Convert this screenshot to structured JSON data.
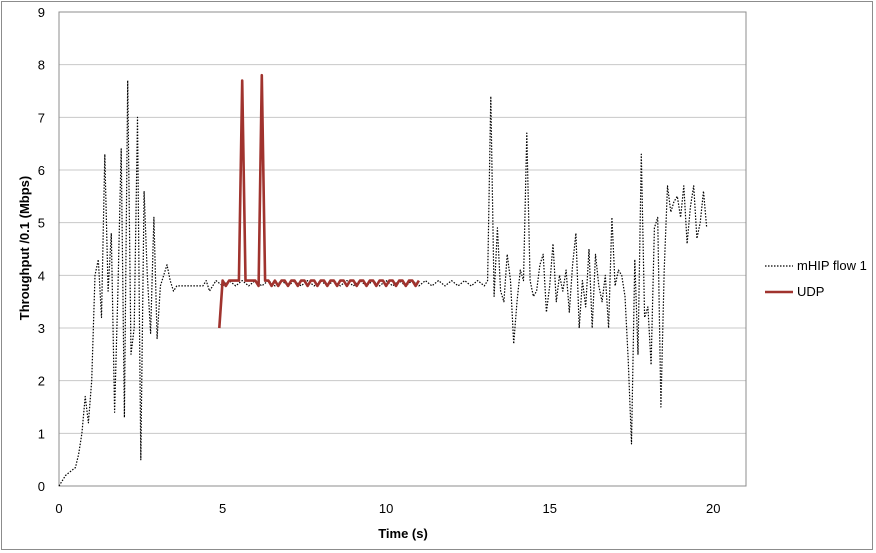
{
  "chart_data": {
    "type": "line",
    "xlabel": "Time (s)",
    "ylabel": "Throughput /0.1 (Mbps)",
    "xlim": [
      0,
      21
    ],
    "ylim": [
      0,
      9
    ],
    "x_ticks": [
      "0",
      "5",
      "10",
      "15",
      "20"
    ],
    "y_ticks": [
      "0",
      "1",
      "2",
      "3",
      "4",
      "5",
      "6",
      "7",
      "8",
      "9"
    ],
    "grid": "horizontal",
    "legend_position": "right",
    "series": [
      {
        "name": "mHIP flow 1",
        "color": "#000000",
        "style": "dotted",
        "points": [
          [
            0.0,
            0.0
          ],
          [
            0.1,
            0.1
          ],
          [
            0.2,
            0.2
          ],
          [
            0.3,
            0.25
          ],
          [
            0.4,
            0.3
          ],
          [
            0.5,
            0.35
          ],
          [
            0.6,
            0.6
          ],
          [
            0.7,
            1.0
          ],
          [
            0.8,
            1.7
          ],
          [
            0.9,
            1.2
          ],
          [
            1.0,
            2.0
          ],
          [
            1.1,
            4.0
          ],
          [
            1.2,
            4.3
          ],
          [
            1.3,
            3.2
          ],
          [
            1.4,
            6.3
          ],
          [
            1.5,
            3.7
          ],
          [
            1.6,
            4.8
          ],
          [
            1.7,
            1.4
          ],
          [
            1.8,
            3.7
          ],
          [
            1.9,
            6.4
          ],
          [
            2.0,
            1.3
          ],
          [
            2.1,
            7.7
          ],
          [
            2.2,
            2.5
          ],
          [
            2.3,
            3.0
          ],
          [
            2.4,
            7.0
          ],
          [
            2.5,
            0.5
          ],
          [
            2.6,
            5.6
          ],
          [
            2.7,
            4.0
          ],
          [
            2.8,
            2.9
          ],
          [
            2.9,
            5.1
          ],
          [
            3.0,
            2.8
          ],
          [
            3.1,
            3.8
          ],
          [
            3.2,
            4.0
          ],
          [
            3.3,
            4.2
          ],
          [
            3.4,
            3.9
          ],
          [
            3.5,
            3.7
          ],
          [
            3.6,
            3.8
          ],
          [
            3.8,
            3.8
          ],
          [
            4.0,
            3.8
          ],
          [
            4.2,
            3.8
          ],
          [
            4.4,
            3.8
          ],
          [
            4.5,
            3.9
          ],
          [
            4.6,
            3.7
          ],
          [
            4.8,
            3.9
          ],
          [
            5.0,
            3.8
          ],
          [
            5.2,
            3.9
          ],
          [
            5.4,
            3.8
          ],
          [
            5.6,
            3.9
          ],
          [
            5.8,
            3.8
          ],
          [
            6.0,
            3.9
          ],
          [
            6.2,
            3.8
          ],
          [
            6.4,
            3.9
          ],
          [
            6.6,
            3.8
          ],
          [
            6.8,
            3.9
          ],
          [
            7.0,
            3.8
          ],
          [
            7.2,
            3.9
          ],
          [
            7.4,
            3.8
          ],
          [
            7.6,
            3.9
          ],
          [
            7.8,
            3.8
          ],
          [
            8.0,
            3.9
          ],
          [
            8.2,
            3.8
          ],
          [
            8.4,
            3.9
          ],
          [
            8.6,
            3.8
          ],
          [
            8.8,
            3.9
          ],
          [
            9.0,
            3.8
          ],
          [
            9.2,
            3.9
          ],
          [
            9.4,
            3.8
          ],
          [
            9.6,
            3.9
          ],
          [
            9.8,
            3.8
          ],
          [
            10.0,
            3.9
          ],
          [
            10.2,
            3.8
          ],
          [
            10.4,
            3.9
          ],
          [
            10.6,
            3.8
          ],
          [
            10.8,
            3.9
          ],
          [
            11.0,
            3.8
          ],
          [
            11.2,
            3.9
          ],
          [
            11.4,
            3.8
          ],
          [
            11.6,
            3.9
          ],
          [
            11.8,
            3.8
          ],
          [
            12.0,
            3.9
          ],
          [
            12.2,
            3.8
          ],
          [
            12.4,
            3.9
          ],
          [
            12.6,
            3.8
          ],
          [
            12.8,
            3.9
          ],
          [
            13.0,
            3.8
          ],
          [
            13.1,
            3.9
          ],
          [
            13.2,
            7.4
          ],
          [
            13.3,
            3.6
          ],
          [
            13.4,
            4.9
          ],
          [
            13.5,
            3.7
          ],
          [
            13.6,
            3.5
          ],
          [
            13.7,
            4.4
          ],
          [
            13.8,
            3.9
          ],
          [
            13.9,
            2.7
          ],
          [
            14.0,
            3.5
          ],
          [
            14.1,
            4.1
          ],
          [
            14.2,
            3.9
          ],
          [
            14.3,
            6.7
          ],
          [
            14.4,
            3.9
          ],
          [
            14.5,
            3.6
          ],
          [
            14.6,
            3.7
          ],
          [
            14.7,
            4.2
          ],
          [
            14.8,
            4.4
          ],
          [
            14.9,
            3.3
          ],
          [
            15.0,
            3.8
          ],
          [
            15.1,
            4.6
          ],
          [
            15.2,
            3.5
          ],
          [
            15.3,
            4.0
          ],
          [
            15.4,
            3.7
          ],
          [
            15.5,
            4.1
          ],
          [
            15.6,
            3.3
          ],
          [
            15.7,
            4.2
          ],
          [
            15.8,
            4.8
          ],
          [
            15.9,
            3.0
          ],
          [
            16.0,
            3.9
          ],
          [
            16.1,
            3.4
          ],
          [
            16.2,
            4.5
          ],
          [
            16.3,
            3.0
          ],
          [
            16.4,
            4.4
          ],
          [
            16.5,
            3.8
          ],
          [
            16.6,
            3.5
          ],
          [
            16.7,
            4.0
          ],
          [
            16.8,
            3.0
          ],
          [
            16.9,
            5.1
          ],
          [
            17.0,
            3.8
          ],
          [
            17.1,
            4.1
          ],
          [
            17.2,
            4.0
          ],
          [
            17.3,
            3.6
          ],
          [
            17.4,
            2.4
          ],
          [
            17.5,
            0.8
          ],
          [
            17.6,
            4.3
          ],
          [
            17.7,
            2.5
          ],
          [
            17.8,
            6.3
          ],
          [
            17.9,
            3.2
          ],
          [
            18.0,
            3.4
          ],
          [
            18.1,
            2.3
          ],
          [
            18.2,
            4.9
          ],
          [
            18.3,
            5.1
          ],
          [
            18.4,
            1.5
          ],
          [
            18.5,
            4.1
          ],
          [
            18.6,
            5.7
          ],
          [
            18.7,
            5.2
          ],
          [
            18.8,
            5.4
          ],
          [
            18.9,
            5.5
          ],
          [
            19.0,
            5.1
          ],
          [
            19.1,
            5.7
          ],
          [
            19.2,
            4.6
          ],
          [
            19.3,
            5.3
          ],
          [
            19.4,
            5.7
          ],
          [
            19.5,
            4.7
          ],
          [
            19.6,
            5.0
          ],
          [
            19.7,
            5.6
          ],
          [
            19.8,
            4.9
          ]
        ]
      },
      {
        "name": "UDP",
        "color": "#a0332e",
        "style": "solid",
        "points": [
          [
            4.9,
            3.0
          ],
          [
            5.0,
            3.9
          ],
          [
            5.1,
            3.8
          ],
          [
            5.2,
            3.9
          ],
          [
            5.3,
            3.9
          ],
          [
            5.4,
            3.9
          ],
          [
            5.5,
            3.9
          ],
          [
            5.6,
            7.7
          ],
          [
            5.7,
            3.9
          ],
          [
            5.8,
            3.9
          ],
          [
            5.9,
            3.9
          ],
          [
            6.0,
            3.9
          ],
          [
            6.1,
            3.8
          ],
          [
            6.2,
            7.8
          ],
          [
            6.3,
            3.9
          ],
          [
            6.4,
            3.9
          ],
          [
            6.5,
            3.8
          ],
          [
            6.6,
            3.9
          ],
          [
            6.7,
            3.8
          ],
          [
            6.8,
            3.9
          ],
          [
            6.9,
            3.9
          ],
          [
            7.0,
            3.8
          ],
          [
            7.1,
            3.9
          ],
          [
            7.2,
            3.9
          ],
          [
            7.3,
            3.8
          ],
          [
            7.4,
            3.9
          ],
          [
            7.5,
            3.9
          ],
          [
            7.6,
            3.8
          ],
          [
            7.7,
            3.9
          ],
          [
            7.8,
            3.9
          ],
          [
            7.9,
            3.8
          ],
          [
            8.0,
            3.9
          ],
          [
            8.1,
            3.9
          ],
          [
            8.2,
            3.8
          ],
          [
            8.3,
            3.9
          ],
          [
            8.4,
            3.9
          ],
          [
            8.5,
            3.8
          ],
          [
            8.6,
            3.9
          ],
          [
            8.7,
            3.9
          ],
          [
            8.8,
            3.8
          ],
          [
            8.9,
            3.9
          ],
          [
            9.0,
            3.9
          ],
          [
            9.1,
            3.8
          ],
          [
            9.2,
            3.9
          ],
          [
            9.3,
            3.9
          ],
          [
            9.4,
            3.8
          ],
          [
            9.5,
            3.9
          ],
          [
            9.6,
            3.9
          ],
          [
            9.7,
            3.8
          ],
          [
            9.8,
            3.9
          ],
          [
            9.9,
            3.9
          ],
          [
            10.0,
            3.8
          ],
          [
            10.1,
            3.9
          ],
          [
            10.2,
            3.9
          ],
          [
            10.3,
            3.8
          ],
          [
            10.4,
            3.9
          ],
          [
            10.5,
            3.9
          ],
          [
            10.6,
            3.8
          ],
          [
            10.7,
            3.9
          ],
          [
            10.8,
            3.9
          ],
          [
            10.9,
            3.8
          ],
          [
            11.0,
            3.9
          ]
        ]
      }
    ]
  }
}
